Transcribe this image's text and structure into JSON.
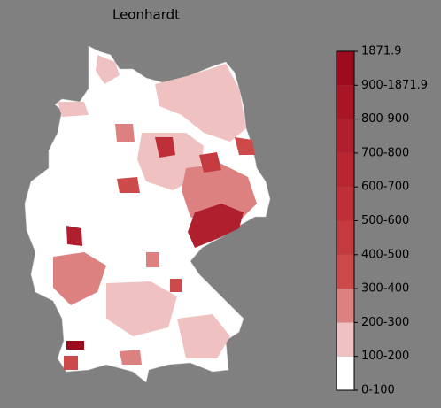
{
  "title": "Leonhardt",
  "colorbar": {
    "ticks": [
      "0-100",
      "100-200",
      "200-300",
      "300-400",
      "400-500",
      "500-600",
      "600-700",
      "700-800",
      "800-900",
      "900-1871.9",
      "1871.9"
    ],
    "colors": [
      "#ffffff",
      "#f0c1c1",
      "#dc8080",
      "#cc4a4a",
      "#c53a3e",
      "#be2f37",
      "#b82632",
      "#b01f2d",
      "#a81626",
      "#9d0b1f"
    ]
  }
}
